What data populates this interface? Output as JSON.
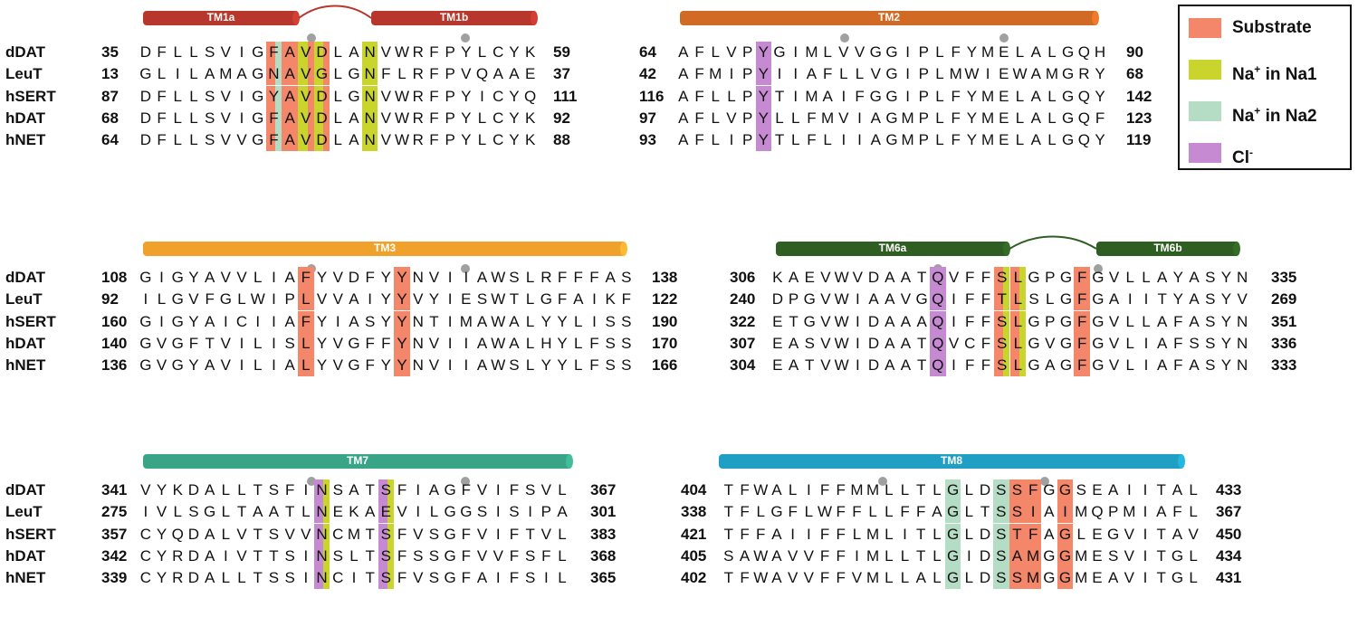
{
  "colors": {
    "substrate": "#f4876a",
    "na1": "#c9d52c",
    "na2": "#b5dcc5",
    "cl": "#c58ad2"
  },
  "legend": [
    {
      "key": "substrate",
      "label": "Substrate",
      "sup": ""
    },
    {
      "key": "na1",
      "label": "Na in Na1",
      "sup": "+"
    },
    {
      "key": "na2",
      "label": "Na in Na2",
      "sup": "+"
    },
    {
      "key": "cl",
      "label": "Cl",
      "sup": "-"
    }
  ],
  "panels": [
    {
      "id": "tm1",
      "helices": [
        {
          "label": "TM1a",
          "color": "#b8372d"
        },
        {
          "label": "TM1b",
          "color": "#b8372d"
        }
      ],
      "rows": [
        {
          "species": "dDAT",
          "start": "35",
          "seq": "DFLLSVIGFAVDLANVWRFPYLCYK",
          "end": "59"
        },
        {
          "species": "LeuT",
          "start": "13",
          "seq": "GLILAMAGNAVGLGNFLRFPVQAAE",
          "end": "37"
        },
        {
          "species": "hSERT",
          "start": "87",
          "seq": "DFLLSVIGYAVDLGNVWRFPYICYQ",
          "end": "111"
        },
        {
          "species": "hDAT",
          "start": "68",
          "seq": "DFLLSVIGFAVDLANVWRFPYLCYK",
          "end": "92"
        },
        {
          "species": "hNET",
          "start": "64",
          "seq": "DFLLSVVGFAVDLANVWRFPYLCYK",
          "end": "88"
        }
      ]
    },
    {
      "id": "tm2",
      "helices": [
        {
          "label": "TM2",
          "color": "#d06a24"
        }
      ],
      "rows": [
        {
          "species": "",
          "start": "64",
          "seq": "AFLVPYGIMLVVGGIPLFYMELALGQH",
          "end": "90"
        },
        {
          "species": "",
          "start": "42",
          "seq": "AFMIPYIIAFLLVGIPLMWIEWAMGRY",
          "end": "68"
        },
        {
          "species": "",
          "start": "116",
          "seq": "AFLLPYTIMAIFGGIPLFYMELALGQY",
          "end": "142"
        },
        {
          "species": "",
          "start": "97",
          "seq": "AFLVPYLLFMVIAGMPLFYMELALGQF",
          "end": "123"
        },
        {
          "species": "",
          "start": "93",
          "seq": "AFLIPYTLFLIIAGMPLFYMELALGQY",
          "end": "119"
        }
      ]
    },
    {
      "id": "tm3",
      "helices": [
        {
          "label": "TM3",
          "color": "#efa12c"
        }
      ],
      "rows": [
        {
          "species": "dDAT",
          "start": "108",
          "seq": "GIGYAVVLIAFYVDFYYNVIIAWSLRFFFAS",
          "end": "138"
        },
        {
          "species": "LeuT",
          "start": "92",
          "seq": "ILGVFGLWIPLVVAIYYVYIESWTLGFAIKF",
          "end": "122"
        },
        {
          "species": "hSERT",
          "start": "160",
          "seq": "GIGYAICIIAFYIASYYNTIMAWALYYLISS",
          "end": "190"
        },
        {
          "species": "hDAT",
          "start": "140",
          "seq": "GVGFTVILISLYVGFFYNVIIAWALHYLFSS",
          "end": "170"
        },
        {
          "species": "hNET",
          "start": "136",
          "seq": "GVGYAVILIALYVGFYYNVIIAWSLYYLFSS",
          "end": "166"
        }
      ]
    },
    {
      "id": "tm6",
      "helices": [
        {
          "label": "TM6a",
          "color": "#2f5e22"
        },
        {
          "label": "TM6b",
          "color": "#2f5e22"
        }
      ],
      "rows": [
        {
          "species": "",
          "start": "306",
          "seq": "KAEVWVDAATQVFFSLGPGFGVLLAYASYN",
          "end": "335"
        },
        {
          "species": "",
          "start": "240",
          "seq": "DPGVWIAAVGQIFFTLSLGFGAIITYASYV",
          "end": "269"
        },
        {
          "species": "",
          "start": "322",
          "seq": "ETGVWIDAAAQIFFSLGPGFGVLLAFASYN",
          "end": "351"
        },
        {
          "species": "",
          "start": "307",
          "seq": "EASVWIDAATQVCFSLGVGFGVLIAFSSYN",
          "end": "336"
        },
        {
          "species": "",
          "start": "304",
          "seq": "EATVWIDAATQIFFSLGAGFGVLIAFASYN",
          "end": "333"
        }
      ]
    },
    {
      "id": "tm7",
      "helices": [
        {
          "label": "TM7",
          "color": "#3aa586"
        }
      ],
      "rows": [
        {
          "species": "dDAT",
          "start": "341",
          "seq": "VYKDALLTSFINSATSFIAGFVIFSVL",
          "end": "367"
        },
        {
          "species": "LeuT",
          "start": "275",
          "seq": "IVLSGLTAATLNEKAEVILGGSISIPA",
          "end": "301"
        },
        {
          "species": "hSERT",
          "start": "357",
          "seq": "CYQDALVTSVVNCMTSFVSGFVIFTVL",
          "end": "383"
        },
        {
          "species": "hDAT",
          "start": "342",
          "seq": "CYRDAIVTTSINSLTSFSSGFVVFSFL",
          "end": "368"
        },
        {
          "species": "hNET",
          "start": "339",
          "seq": "CYRDALLTSSINCITSFVSGFAIFSIL",
          "end": "365"
        }
      ]
    },
    {
      "id": "tm8",
      "helices": [
        {
          "label": "TM8",
          "color": "#1f9fc4"
        }
      ],
      "rows": [
        {
          "species": "",
          "start": "404",
          "seq": "TFWALIFFMMLLTLGLDSSFGGSEAIITAL",
          "end": "433"
        },
        {
          "species": "",
          "start": "338",
          "seq": "TFLGFLWFFLLFFAGLTSSIAIMQPMIAFL",
          "end": "367"
        },
        {
          "species": "",
          "start": "421",
          "seq": "TFFAIIFFLMLITLGLDSTFAGLEGVITAV",
          "end": "450"
        },
        {
          "species": "",
          "start": "405",
          "seq": "SAWAVVFFIMLLTLGIDSAMGGMESVITGL",
          "end": "434"
        },
        {
          "species": "",
          "start": "402",
          "seq": "TFWAVVFFVMLLALGLDSSMGGMEAVITGL",
          "end": "431"
        }
      ]
    }
  ]
}
